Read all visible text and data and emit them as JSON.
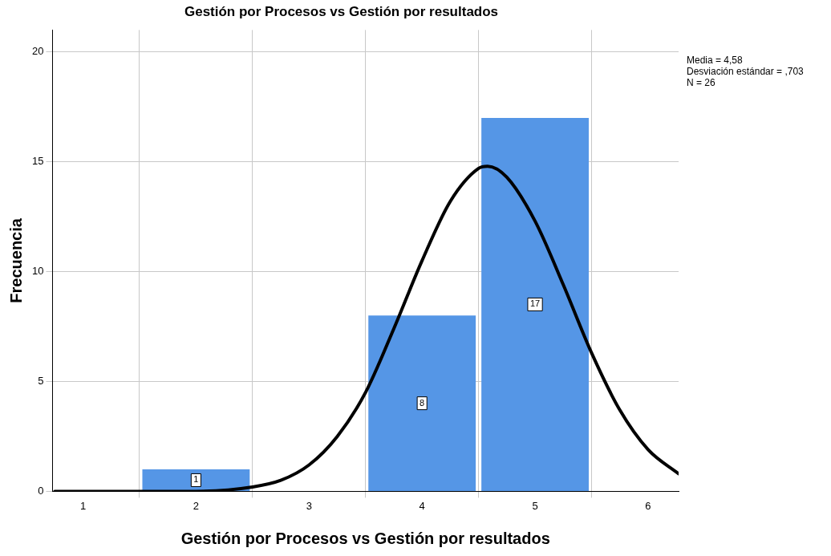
{
  "chart_data": {
    "type": "histogram",
    "title": "Gestión por Procesos vs Gestión por resultados",
    "xlabel": "Gestión por Procesos vs Gestión por resultados",
    "ylabel": "Frecuencia",
    "bins": [
      1.5,
      2.5,
      3.5,
      4.5,
      5.5
    ],
    "values": [
      1,
      0,
      8,
      17
    ],
    "color": "#5596e6",
    "value_labels": [
      "1",
      null,
      "8",
      "17"
    ],
    "series": [
      {
        "type": "line",
        "color": "#000000",
        "x": [
          0.75,
          1.5,
          2.0,
          2.5,
          2.75,
          3.0,
          3.25,
          3.5,
          3.75,
          4.0,
          4.25,
          4.5,
          4.58,
          4.75,
          5.0,
          5.25,
          5.5,
          5.75,
          6.0,
          6.27
        ],
        "values": [
          0,
          0,
          0,
          0.2,
          0.5,
          1.2,
          2.5,
          4.5,
          7.4,
          10.5,
          13.2,
          14.7,
          14.8,
          14.3,
          12.3,
          9.4,
          6.3,
          3.7,
          1.9,
          0.8
        ]
      }
    ],
    "xlim": [
      0.73,
      6.27
    ],
    "ylim": [
      0,
      21
    ],
    "xticks": [
      1,
      2,
      3,
      4,
      5,
      6
    ],
    "yticks": [
      0,
      5,
      10,
      15,
      20
    ],
    "grid": true,
    "marker": "none",
    "annotations": [
      "Media = 4,58",
      "Desviación estándar = ,703",
      "N = 26"
    ]
  }
}
